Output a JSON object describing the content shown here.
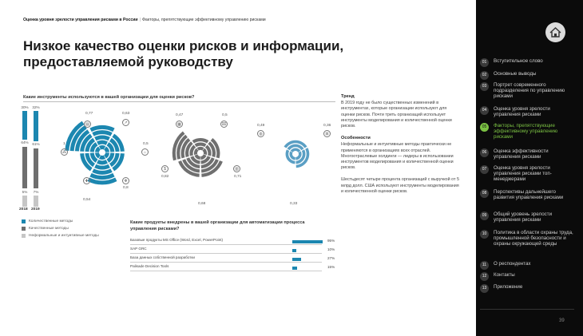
{
  "header": {
    "breadcrumb_bold": "Оценка уровня зрелости управления рисками в России",
    "breadcrumb_rest": "Факторы, препятствующие эффективному управлению рисками",
    "title_line1": "Низкое качество оценки рисков и информации,",
    "title_line2": "предоставляемой руководству"
  },
  "chart1": {
    "question": "Какие инструменты используются в вашей организации для оценки рисков?"
  },
  "chart_data": [
    {
      "type": "bar",
      "categories": [
        "2018",
        "2019"
      ],
      "series": [
        {
          "name": "Количественные методы",
          "values": [
            30,
            32
          ]
        },
        {
          "name": "Качественные методы",
          "values": [
            64,
            61
          ]
        },
        {
          "name": "Неформальные и интуитивные методы",
          "values": [
            5,
            7
          ]
        }
      ],
      "value_labels": [
        [
          "30%",
          "64%",
          "5%"
        ],
        [
          "32%",
          "61%",
          "7%"
        ]
      ],
      "ylim": [
        0,
        100
      ]
    },
    {
      "type": "bar",
      "subtype": "radial",
      "series": [
        {
          "name": "Количественные методы",
          "values": [
            0.77,
            0.63,
            0.5,
            0.8,
            0.54,
            1
          ]
        },
        {
          "name": "Качественные методы",
          "values": [
            0.47,
            0.5,
            0.71,
            0.68,
            0.82
          ]
        },
        {
          "name": "Неформальные и интуитивные методы",
          "values": [
            0.49,
            0.36,
            0.33
          ]
        }
      ],
      "labels": {
        "a": [
          "0,77",
          "0,63",
          "0,5",
          "0,8",
          "0,54",
          "1"
        ],
        "b": [
          "0,47",
          "0,5",
          "0,71",
          "0,68",
          "0,82"
        ],
        "c": [
          "0,49",
          "0,36",
          "0,33"
        ]
      }
    },
    {
      "type": "bar",
      "orientation": "horizontal",
      "title": "Какие продукты внедрены в вашей организации для автоматизации процесса управления рисками?",
      "categories": [
        "Базовые продукты MS Office (Word, Excel, PowerPoint)",
        "SAP GRC",
        "База данных собственной разработки",
        "Palisade Decision Tools"
      ],
      "values": [
        95,
        10,
        27,
        15
      ],
      "value_labels": [
        "95%",
        "10%",
        "27%",
        "15%"
      ],
      "xlim": [
        0,
        100
      ]
    }
  ],
  "legend": {
    "items": [
      {
        "label": "Количественные методы",
        "color": "#1c87b0"
      },
      {
        "label": "Качественные методы",
        "color": "#6f6f6f"
      },
      {
        "label": "Неформальные и интуитивные методы",
        "color": "#c6c6c6"
      }
    ]
  },
  "trend": {
    "heading": "Тренд",
    "text": "В 2019 году не было существенных изменений в инструментах, которые организации используют для оценки рисков. Почти треть организаций использует инструменты моделирования и количественной оценки рисков."
  },
  "features": {
    "heading": "Особенности",
    "text": "Неформальные и интуитивные методы практически не применяются в организациях всех отраслей. Многоотраслевые холдинги — лидеры в использовании инструментов моделирования и количественной оценки рисков.",
    "text2": "Шестьдесят четыре процента организаций с выручкой от 5 млрд долл. США используют инструменты моделирования и количественной оценки рисков."
  },
  "colors": {
    "quant": "#1c87b0",
    "qual": "#6f6f6f",
    "informal": "#c6c6c6",
    "accent": "#7bc143"
  },
  "sidebar": {
    "home_icon": "home-icon",
    "items": [
      {
        "num": "01",
        "label": "Вступительное слово"
      },
      {
        "num": "02",
        "label": "Основные выводы"
      },
      {
        "num": "03",
        "label": "Портрет современного подразделения по управлению рисками"
      },
      {
        "num": "04",
        "label": "Оценка уровня зрелости управления рисками"
      },
      {
        "num": "05",
        "label": "Факторы, препятствующие эффективному управлению рисками"
      },
      {
        "num": "06",
        "label": "Оценка эффективности управления рисками"
      },
      {
        "num": "07",
        "label": "Оценка уровня зрелости управления рисками топ-менеджерами"
      },
      {
        "num": "08",
        "label": "Перспективы дальнейшего развития управления рисками"
      },
      {
        "num": "09",
        "label": "Общий уровень зрелости управления рисками"
      },
      {
        "num": "10",
        "label": "Политика в области охраны труда, промышленной безопасности и охраны окружающей среды"
      },
      {
        "num": "11",
        "label": "О респондентах"
      },
      {
        "num": "12",
        "label": "Контакты"
      },
      {
        "num": "13",
        "label": "Приложение"
      }
    ],
    "page_number": "39"
  }
}
